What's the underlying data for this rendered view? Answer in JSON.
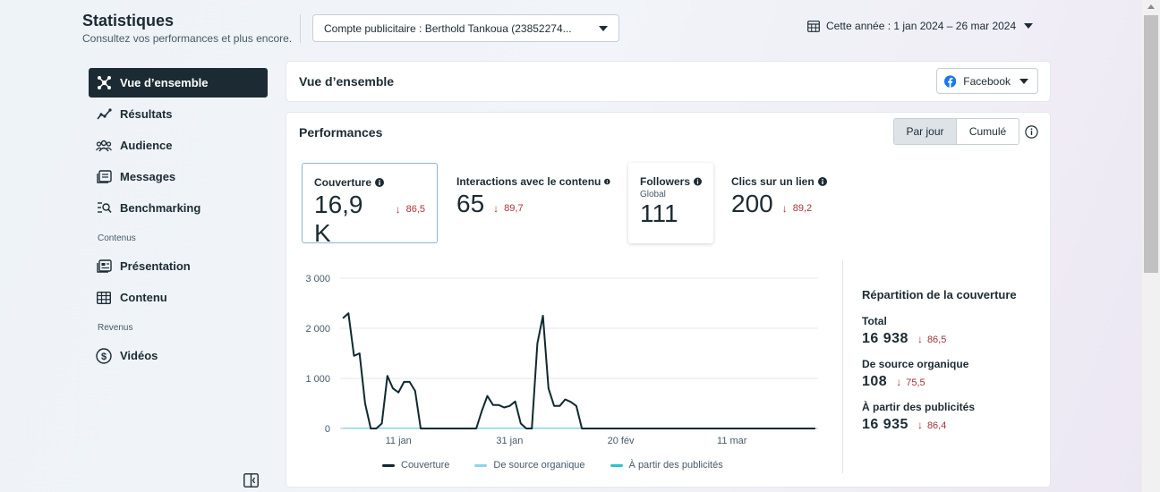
{
  "header": {
    "title": "Statistiques",
    "subtitle": "Consultez vos performances et plus encore.",
    "account_select": "Compte publicitaire : Berthold Tankoua (23852274...",
    "date_range": "Cette année : 1 jan 2024 – 26 mar 2024"
  },
  "sidebar": {
    "items": [
      {
        "label": "Vue d’ensemble",
        "icon": "overview-icon"
      },
      {
        "label": "Résultats",
        "icon": "results-icon"
      },
      {
        "label": "Audience",
        "icon": "audience-icon"
      },
      {
        "label": "Messages",
        "icon": "messages-icon"
      },
      {
        "label": "Benchmarking",
        "icon": "benchmark-icon"
      }
    ],
    "section_content": "Contenus",
    "content_items": [
      {
        "label": "Présentation",
        "icon": "presentation-icon"
      },
      {
        "label": "Contenu",
        "icon": "content-table-icon"
      }
    ],
    "section_revenue": "Revenus",
    "revenue_items": [
      {
        "label": "Vidéos",
        "icon": "dollar-icon"
      }
    ]
  },
  "overview": {
    "title": "Vue d’ensemble",
    "platform": "Facebook"
  },
  "performance": {
    "title": "Performances",
    "toggle_daily": "Par jour",
    "toggle_cumulative": "Cumulé",
    "metrics": {
      "couverture": {
        "label": "Couverture",
        "value": "16,9 K",
        "delta": "86,5"
      },
      "interactions": {
        "label": "Interactions avec le contenu",
        "value": "65",
        "delta": "89,7"
      },
      "followers": {
        "label": "Followers",
        "sub": "Global",
        "value": "111"
      },
      "clics": {
        "label": "Clics sur un lien",
        "value": "200",
        "delta": "89,2"
      }
    },
    "breakdown": {
      "title": "Répartition de la couverture",
      "total_label": "Total",
      "total_value": "16 938",
      "total_delta": "86,5",
      "organic_label": "De source organique",
      "organic_value": "108",
      "organic_delta": "75,5",
      "ads_label": "À partir des publicités",
      "ads_value": "16 935",
      "ads_delta": "86,4"
    }
  },
  "colors": {
    "couverture": "#0f2a2e",
    "organique": "#8fd3ee",
    "publicites": "#2bc3c9",
    "negative": "#a8323a"
  },
  "chart_data": {
    "type": "line",
    "y_ticks": [
      "3 000",
      "2 000",
      "1 000",
      "0"
    ],
    "ylim": [
      0,
      3000
    ],
    "x_ticks": [
      {
        "label": "11 jan",
        "day": 10
      },
      {
        "label": "31 jan",
        "day": 30
      },
      {
        "label": "20 fév",
        "day": 50
      },
      {
        "label": "11 mar",
        "day": 70
      }
    ],
    "x_range": [
      -0.5,
      85.5
    ],
    "series": [
      {
        "name": "Couverture",
        "values": [
          2200,
          2300,
          1450,
          1500,
          500,
          0,
          0,
          100,
          1050,
          800,
          720,
          930,
          930,
          750,
          0,
          0,
          0,
          0,
          0,
          0,
          0,
          0,
          0,
          0,
          0,
          350,
          650,
          470,
          470,
          420,
          450,
          540,
          100,
          0,
          0,
          1700,
          2250,
          800,
          450,
          450,
          580,
          530,
          450,
          0,
          0,
          0,
          0,
          0,
          0,
          0,
          0,
          0,
          0,
          0,
          0,
          0,
          0,
          0,
          0,
          0,
          0,
          0,
          0,
          0,
          0,
          0,
          0,
          0,
          0,
          0,
          0,
          0,
          0,
          0,
          0,
          0,
          0,
          0,
          0,
          0,
          0,
          0,
          0,
          0,
          0,
          0
        ]
      },
      {
        "name": "De source organique",
        "values": [
          5,
          5,
          5,
          5,
          5,
          5,
          5,
          5,
          5,
          5,
          5,
          5,
          5,
          5,
          5,
          5,
          5,
          5,
          5,
          5,
          5,
          5,
          5,
          5,
          5,
          5,
          5,
          5,
          5,
          5,
          5,
          5,
          5,
          5,
          5,
          5,
          5,
          5,
          5,
          5,
          5,
          5,
          5,
          5
        ]
      },
      {
        "name": "À partir des publicités",
        "values": []
      }
    ]
  }
}
